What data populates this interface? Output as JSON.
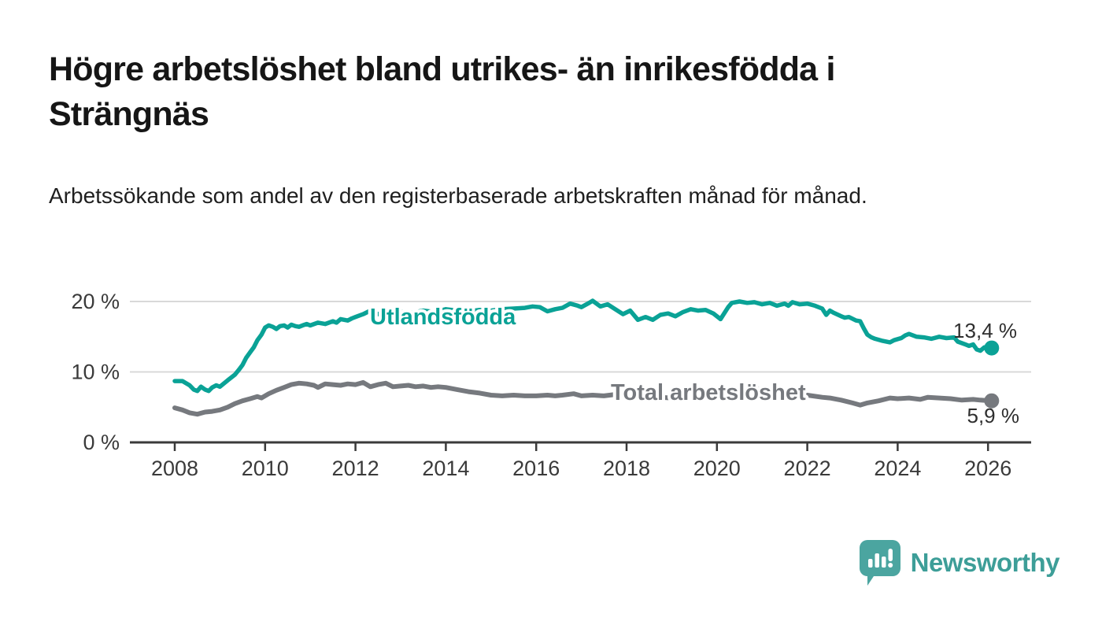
{
  "header": {
    "title": "Högre arbetslöshet bland utrikes- än inrikesfödda i Strängnäs",
    "subtitle": "Arbetssökande som andel av den registerbaserade arbetskraften månad för månad."
  },
  "footer": {
    "brand": "Newsworthy",
    "logo_icon": "newsworthy-speech-bubble-bar-chart-icon"
  },
  "colors": {
    "accent_teal": "#0aa296",
    "series_gray": "#76797e",
    "grid": "#d9d9d9",
    "axis": "#3a3a3a",
    "value_label": "#2e2e2e",
    "logo_teal": "#4ba5a0"
  },
  "chart_data": {
    "type": "line",
    "title": "Högre arbetslöshet bland utrikes- än inrikesfödda i Strängnäs",
    "xlabel": "",
    "ylabel": "Arbetssökande som andel av den registerbaserade arbetskraften",
    "x_unit": "year (monthly data)",
    "y_unit": "%",
    "xlim": [
      2007.2,
      2027.0
    ],
    "ylim": [
      0,
      22
    ],
    "grid": "horizontal-only",
    "legend_position": "inline-labels-on-lines",
    "x_tick_labels": [
      "2008",
      "2010",
      "2012",
      "2014",
      "2016",
      "2018",
      "2020",
      "2022",
      "2024",
      "2026"
    ],
    "x_tick_values": [
      2008,
      2010,
      2012,
      2014,
      2016,
      2018,
      2020,
      2022,
      2024,
      2026
    ],
    "y_tick_labels": [
      "0 %",
      "10 %",
      "20 %"
    ],
    "y_tick_values": [
      0,
      10,
      20
    ],
    "series": [
      {
        "name": "Utlandsfödda",
        "color": "#0aa296",
        "end_label": "13,4 %",
        "end_value": 13.4,
        "points": [
          [
            2008.0,
            8.7
          ],
          [
            2008.17,
            8.7
          ],
          [
            2008.33,
            8.1
          ],
          [
            2008.42,
            7.5
          ],
          [
            2008.5,
            7.3
          ],
          [
            2008.58,
            7.9
          ],
          [
            2008.67,
            7.5
          ],
          [
            2008.75,
            7.3
          ],
          [
            2008.83,
            7.8
          ],
          [
            2008.92,
            8.1
          ],
          [
            2009.0,
            7.9
          ],
          [
            2009.17,
            8.8
          ],
          [
            2009.33,
            9.6
          ],
          [
            2009.42,
            10.3
          ],
          [
            2009.5,
            11.0
          ],
          [
            2009.58,
            12.0
          ],
          [
            2009.67,
            12.8
          ],
          [
            2009.75,
            13.5
          ],
          [
            2009.83,
            14.5
          ],
          [
            2009.92,
            15.3
          ],
          [
            2010.0,
            16.3
          ],
          [
            2010.08,
            16.6
          ],
          [
            2010.17,
            16.4
          ],
          [
            2010.25,
            16.1
          ],
          [
            2010.33,
            16.5
          ],
          [
            2010.42,
            16.6
          ],
          [
            2010.5,
            16.3
          ],
          [
            2010.58,
            16.7
          ],
          [
            2010.67,
            16.5
          ],
          [
            2010.75,
            16.4
          ],
          [
            2010.83,
            16.6
          ],
          [
            2010.92,
            16.8
          ],
          [
            2011.0,
            16.6
          ],
          [
            2011.17,
            17.0
          ],
          [
            2011.33,
            16.8
          ],
          [
            2011.5,
            17.2
          ],
          [
            2011.58,
            17.0
          ],
          [
            2011.67,
            17.5
          ],
          [
            2011.83,
            17.3
          ],
          [
            2011.92,
            17.6
          ],
          [
            2012.0,
            17.8
          ],
          [
            2012.17,
            18.2
          ],
          [
            2012.33,
            18.7
          ],
          [
            2012.42,
            18.4
          ],
          [
            2012.5,
            18.2
          ],
          [
            2012.67,
            18.5
          ],
          [
            2012.83,
            18.3
          ],
          [
            2013.0,
            18.5
          ],
          [
            2013.25,
            18.4
          ],
          [
            2013.5,
            18.7
          ],
          [
            2013.75,
            18.5
          ],
          [
            2014.0,
            18.9
          ],
          [
            2014.25,
            18.7
          ],
          [
            2014.5,
            18.6
          ],
          [
            2014.75,
            18.8
          ],
          [
            2015.0,
            18.7
          ],
          [
            2015.25,
            18.9
          ],
          [
            2015.5,
            19.0
          ],
          [
            2015.75,
            19.1
          ],
          [
            2015.92,
            19.3
          ],
          [
            2016.08,
            19.2
          ],
          [
            2016.25,
            18.6
          ],
          [
            2016.42,
            18.9
          ],
          [
            2016.58,
            19.1
          ],
          [
            2016.75,
            19.7
          ],
          [
            2016.92,
            19.4
          ],
          [
            2017.0,
            19.2
          ],
          [
            2017.17,
            19.8
          ],
          [
            2017.25,
            20.1
          ],
          [
            2017.42,
            19.3
          ],
          [
            2017.58,
            19.6
          ],
          [
            2017.75,
            18.9
          ],
          [
            2017.92,
            18.2
          ],
          [
            2018.08,
            18.7
          ],
          [
            2018.25,
            17.4
          ],
          [
            2018.42,
            17.8
          ],
          [
            2018.58,
            17.4
          ],
          [
            2018.75,
            18.1
          ],
          [
            2018.92,
            18.3
          ],
          [
            2019.08,
            17.9
          ],
          [
            2019.25,
            18.5
          ],
          [
            2019.42,
            18.9
          ],
          [
            2019.58,
            18.7
          ],
          [
            2019.75,
            18.8
          ],
          [
            2019.92,
            18.3
          ],
          [
            2020.0,
            17.9
          ],
          [
            2020.08,
            17.5
          ],
          [
            2020.25,
            19.2
          ],
          [
            2020.33,
            19.8
          ],
          [
            2020.5,
            20.0
          ],
          [
            2020.67,
            19.8
          ],
          [
            2020.83,
            19.9
          ],
          [
            2021.0,
            19.6
          ],
          [
            2021.17,
            19.8
          ],
          [
            2021.33,
            19.4
          ],
          [
            2021.5,
            19.7
          ],
          [
            2021.58,
            19.4
          ],
          [
            2021.67,
            19.9
          ],
          [
            2021.83,
            19.6
          ],
          [
            2022.0,
            19.7
          ],
          [
            2022.17,
            19.4
          ],
          [
            2022.33,
            19.0
          ],
          [
            2022.42,
            18.1
          ],
          [
            2022.5,
            18.7
          ],
          [
            2022.58,
            18.4
          ],
          [
            2022.75,
            17.9
          ],
          [
            2022.83,
            17.7
          ],
          [
            2022.92,
            17.8
          ],
          [
            2023.08,
            17.3
          ],
          [
            2023.17,
            17.2
          ],
          [
            2023.25,
            16.2
          ],
          [
            2023.33,
            15.3
          ],
          [
            2023.42,
            14.9
          ],
          [
            2023.5,
            14.7
          ],
          [
            2023.67,
            14.4
          ],
          [
            2023.83,
            14.2
          ],
          [
            2023.92,
            14.5
          ],
          [
            2024.08,
            14.8
          ],
          [
            2024.17,
            15.2
          ],
          [
            2024.25,
            15.4
          ],
          [
            2024.42,
            15.0
          ],
          [
            2024.58,
            14.9
          ],
          [
            2024.75,
            14.7
          ],
          [
            2024.92,
            15.0
          ],
          [
            2025.08,
            14.8
          ],
          [
            2025.25,
            14.9
          ],
          [
            2025.33,
            14.3
          ],
          [
            2025.5,
            13.9
          ],
          [
            2025.58,
            13.7
          ],
          [
            2025.67,
            13.9
          ],
          [
            2025.75,
            13.2
          ],
          [
            2025.83,
            13.0
          ],
          [
            2025.92,
            13.5
          ],
          [
            2026.08,
            13.4
          ]
        ]
      },
      {
        "name": "Total arbetslöshet",
        "color": "#76797e",
        "end_label": "5,9 %",
        "end_value": 5.9,
        "points": [
          [
            2008.0,
            4.9
          ],
          [
            2008.17,
            4.6
          ],
          [
            2008.33,
            4.2
          ],
          [
            2008.5,
            4.0
          ],
          [
            2008.67,
            4.3
          ],
          [
            2008.83,
            4.4
          ],
          [
            2009.0,
            4.6
          ],
          [
            2009.17,
            5.0
          ],
          [
            2009.33,
            5.5
          ],
          [
            2009.5,
            5.9
          ],
          [
            2009.67,
            6.2
          ],
          [
            2009.83,
            6.5
          ],
          [
            2009.92,
            6.3
          ],
          [
            2010.08,
            6.9
          ],
          [
            2010.25,
            7.4
          ],
          [
            2010.42,
            7.8
          ],
          [
            2010.58,
            8.2
          ],
          [
            2010.75,
            8.4
          ],
          [
            2010.92,
            8.3
          ],
          [
            2011.08,
            8.1
          ],
          [
            2011.17,
            7.8
          ],
          [
            2011.33,
            8.3
          ],
          [
            2011.5,
            8.2
          ],
          [
            2011.67,
            8.1
          ],
          [
            2011.83,
            8.3
          ],
          [
            2012.0,
            8.2
          ],
          [
            2012.17,
            8.5
          ],
          [
            2012.33,
            7.9
          ],
          [
            2012.5,
            8.2
          ],
          [
            2012.67,
            8.4
          ],
          [
            2012.83,
            7.9
          ],
          [
            2013.0,
            8.0
          ],
          [
            2013.17,
            8.1
          ],
          [
            2013.33,
            7.9
          ],
          [
            2013.5,
            8.0
          ],
          [
            2013.67,
            7.8
          ],
          [
            2013.83,
            7.9
          ],
          [
            2014.0,
            7.8
          ],
          [
            2014.25,
            7.5
          ],
          [
            2014.5,
            7.2
          ],
          [
            2014.75,
            7.0
          ],
          [
            2015.0,
            6.7
          ],
          [
            2015.25,
            6.6
          ],
          [
            2015.5,
            6.7
          ],
          [
            2015.75,
            6.6
          ],
          [
            2016.0,
            6.6
          ],
          [
            2016.25,
            6.7
          ],
          [
            2016.42,
            6.6
          ],
          [
            2016.58,
            6.7
          ],
          [
            2016.83,
            6.9
          ],
          [
            2017.0,
            6.6
          ],
          [
            2017.25,
            6.7
          ],
          [
            2017.5,
            6.6
          ],
          [
            2017.75,
            6.8
          ],
          [
            2018.0,
            6.5
          ],
          [
            2018.25,
            6.4
          ],
          [
            2018.5,
            6.6
          ],
          [
            2018.75,
            6.4
          ],
          [
            2019.0,
            6.3
          ],
          [
            2019.5,
            6.2
          ],
          [
            2020.0,
            6.6
          ],
          [
            2020.33,
            7.6
          ],
          [
            2020.67,
            7.8
          ],
          [
            2021.0,
            7.5
          ],
          [
            2021.5,
            7.0
          ],
          [
            2022.0,
            6.7
          ],
          [
            2022.33,
            6.4
          ],
          [
            2022.5,
            6.3
          ],
          [
            2022.75,
            6.0
          ],
          [
            2023.0,
            5.6
          ],
          [
            2023.17,
            5.3
          ],
          [
            2023.33,
            5.6
          ],
          [
            2023.58,
            5.9
          ],
          [
            2023.83,
            6.3
          ],
          [
            2024.0,
            6.2
          ],
          [
            2024.25,
            6.3
          ],
          [
            2024.5,
            6.1
          ],
          [
            2024.67,
            6.4
          ],
          [
            2024.92,
            6.3
          ],
          [
            2025.17,
            6.2
          ],
          [
            2025.42,
            6.0
          ],
          [
            2025.67,
            6.1
          ],
          [
            2025.83,
            6.0
          ],
          [
            2026.08,
            5.9
          ]
        ]
      }
    ]
  }
}
